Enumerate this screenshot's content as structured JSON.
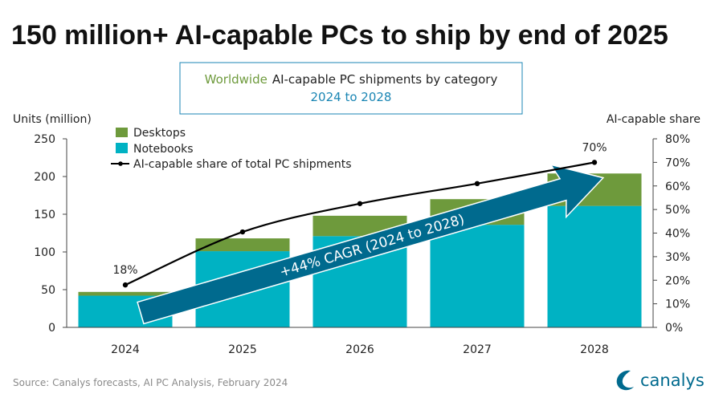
{
  "title": "150 million+ AI-capable PCs to ship by end of 2025",
  "subtitle_box": {
    "line1_highlight": "Worldwide",
    "line1_rest": "AI-capable PC shipments by category",
    "line2": "2024 to 2028"
  },
  "source": "Source:  Canalys forecasts, AI PC Analysis, February 2024",
  "logo_text": "canalys",
  "annotation_arrow": "+44% CAGR (2024 to 2028)",
  "colors": {
    "desktops": "#6e9a3c",
    "notebooks": "#00b2c3",
    "arrow": "#006a8e",
    "highlight": "#6e9a3c",
    "accent": "#1b86b4"
  },
  "chart_data": {
    "type": "bar",
    "stacked": true,
    "categories": [
      "2024",
      "2025",
      "2026",
      "2027",
      "2028"
    ],
    "series": [
      {
        "name": "Notebooks",
        "values": [
          42,
          101,
          121,
          136,
          161
        ]
      },
      {
        "name": "Desktops",
        "values": [
          5,
          17,
          27,
          34,
          43
        ]
      }
    ],
    "line_series": {
      "name": "AI-capable share of total PC shipments",
      "axis": "right",
      "values": [
        18,
        40.5,
        52.5,
        61,
        70
      ],
      "data_labels": [
        "18%",
        "",
        "",
        "",
        "70%"
      ]
    },
    "ylabel": "Units (million)",
    "ylabel_right": "AI-capable share",
    "ylim": [
      0,
      250
    ],
    "yticks": [
      "0",
      "50",
      "100",
      "150",
      "200",
      "250"
    ],
    "ylim_right": [
      0,
      80
    ],
    "yticks_right": [
      "0%",
      "10%",
      "20%",
      "30%",
      "40%",
      "50%",
      "60%",
      "70%",
      "80%"
    ],
    "grid": false,
    "legend_position": "top-left"
  }
}
